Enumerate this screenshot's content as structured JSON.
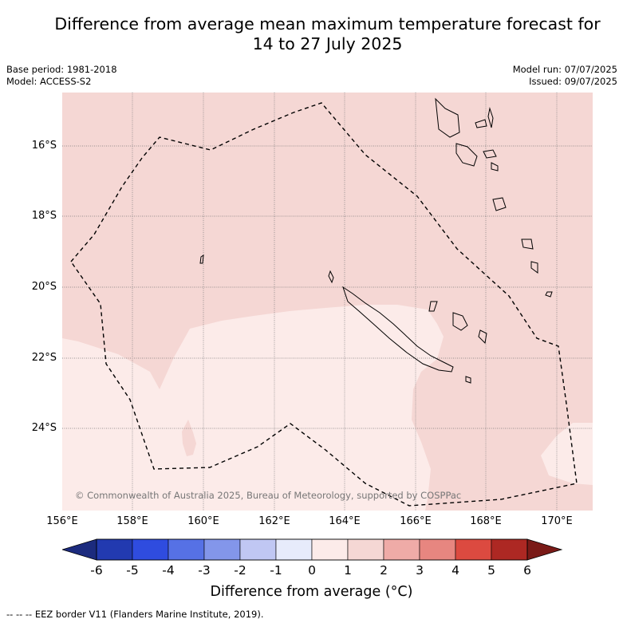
{
  "title": {
    "line1": "Difference from average mean maximum temperature forecast for",
    "line2": "14 to 27 July 2025"
  },
  "meta": {
    "base_period": "Base period: 1981-2018",
    "model": "Model: ACCESS-S2",
    "model_run": "Model run: 07/07/2025",
    "issued": "Issued: 09/07/2025"
  },
  "map": {
    "lat_labels": [
      "16°S",
      "18°S",
      "20°S",
      "22°S",
      "24°S"
    ],
    "lon_labels": [
      "156°E",
      "158°E",
      "160°E",
      "162°E",
      "164°E",
      "166°E",
      "168°E",
      "170°E"
    ],
    "copyright": "© Commonwealth of Australia 2025, Bureau of Meteorology, supported by COSPPac",
    "anomaly_colors": {
      "0_to_1": "#fcebe9",
      "1_to_2": "#f5d7d4"
    }
  },
  "colorbar": {
    "title": "Difference from average (°C)",
    "ticks": [
      "-6",
      "-5",
      "-4",
      "-3",
      "-2",
      "-1",
      "0",
      "1",
      "2",
      "3",
      "4",
      "5",
      "6"
    ],
    "colors": [
      "#1c2b7e",
      "#223ab0",
      "#2f4cdf",
      "#5671e5",
      "#8396ea",
      "#c0c7f3",
      "#e7ebfb",
      "#fcebe9",
      "#f5d7d4",
      "#efaba7",
      "#e78680",
      "#dc4a40",
      "#ad2823",
      "#7a1a17"
    ]
  },
  "footnote": "--  --  -- EEZ border V11 (Flanders Marine Institute, 2019)."
}
